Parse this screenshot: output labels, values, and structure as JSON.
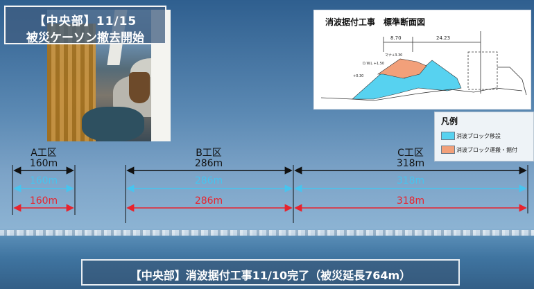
{
  "title": {
    "line1": "【中央部】11/15",
    "line2": "被災ケーソン撤去開始"
  },
  "diagram": {
    "title": "消波据付工事　標準断面図",
    "dim_left": "8.70",
    "dim_right": "24.23",
    "small_label_1": "マナ+3.30",
    "small_label_2": "D.W.L +1.50",
    "small_label_3": "+0.30"
  },
  "legend": {
    "title": "凡例",
    "items": [
      {
        "label": "消波ブロック移設",
        "color": "#57d2f0"
      },
      {
        "label": "消波ブロック運搬・据付",
        "color": "#f2a07a"
      }
    ]
  },
  "zones": [
    {
      "name": "A工区",
      "length": "160m",
      "cyan": "160m",
      "red": "160m"
    },
    {
      "name": "B工区",
      "length": "286m",
      "cyan": "286m",
      "red": "286m"
    },
    {
      "name": "C工区",
      "length": "318m",
      "cyan": "318m",
      "red": "318m"
    }
  ],
  "bottom_caption": "【中央部】消波据付工事11/10完了（被災延長764m）",
  "colors": {
    "cyan_line": "#47c4ef",
    "red_line": "#e8232d",
    "black_line": "#111111"
  }
}
